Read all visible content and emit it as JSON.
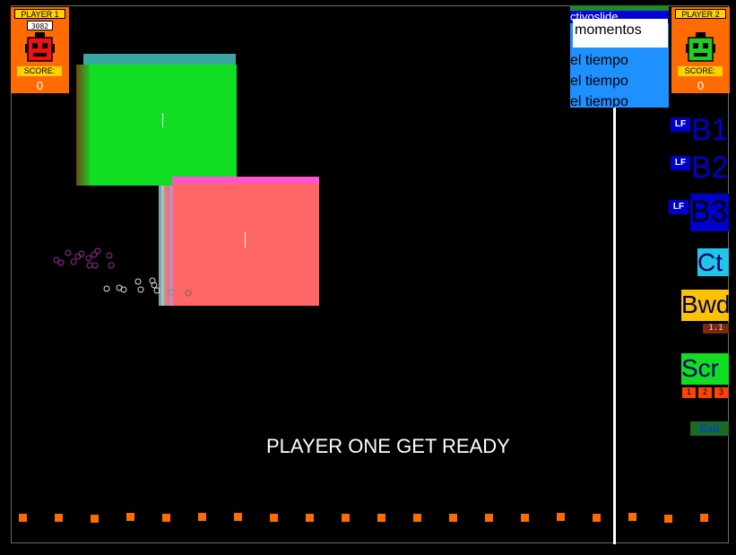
{
  "player1": {
    "title": "PLAYER 1",
    "hiscore": "3082",
    "score_label": "SCORE:",
    "score": "0",
    "face_color": "#ee1111"
  },
  "player2": {
    "title": "PLAYER 2",
    "score_label": "SCORE:",
    "score": "0",
    "face_color": "#22cc22"
  },
  "word_panel": {
    "ghost_text": "ctivoslide",
    "selected": "momentos",
    "options": [
      "el tiempo",
      "el tiempo",
      "el tiempo"
    ]
  },
  "side_controls": {
    "lf_label": "LF",
    "b1": "B1",
    "b2": "B2",
    "b3": "B3",
    "ct": "Ct",
    "bwd": "Bwd",
    "bwd_value": "1.1",
    "scr": "Scr",
    "scr_options": [
      "1",
      "2",
      "3"
    ],
    "exit": "Exit"
  },
  "message": "PLAYER ONE GET READY",
  "colors": {
    "green_block": "#11dd22",
    "pink_block": "#ff6666",
    "accent_orange": "#ff6b00",
    "panel_blue": "#1e90ff"
  }
}
